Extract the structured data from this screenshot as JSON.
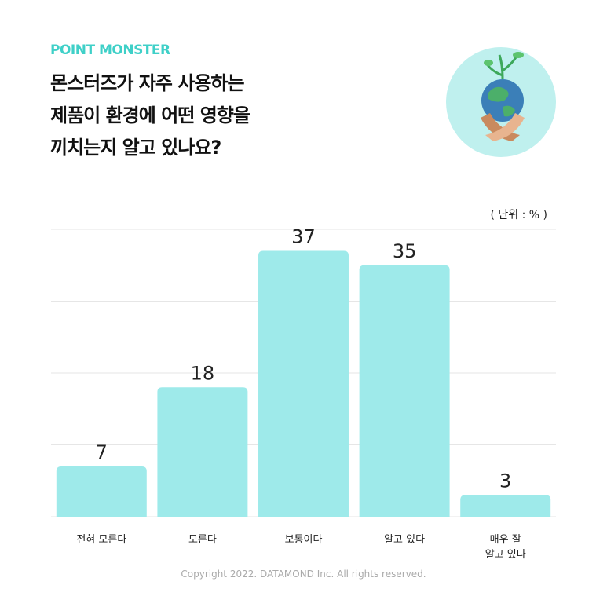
{
  "brand": "POINT MONSTER",
  "question": "몬스터즈가 자주 사용하는\n제품이 환경에 어떤 영향을\n끼치는지 알고 있나요?",
  "footer": "Copyright 2022. DATAMOND Inc. All rights reserved.",
  "chart_data": {
    "type": "bar",
    "unit_label": "( 단위 : % )",
    "categories": [
      "전혀 모른다",
      "모른다",
      "보통이다",
      "알고 있다",
      "매우 잘\n알고 있다"
    ],
    "values": [
      7,
      18,
      37,
      35,
      3
    ],
    "color": "#9eeaea",
    "ylim": [
      0,
      40
    ],
    "yticks": [
      0,
      10,
      20,
      30,
      40
    ],
    "grid": true
  }
}
